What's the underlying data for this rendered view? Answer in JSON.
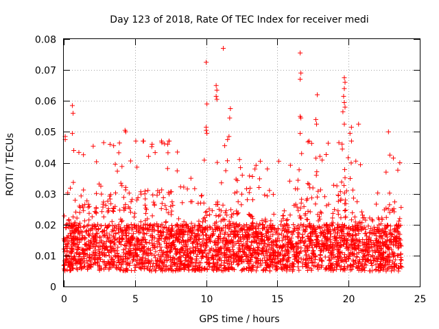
{
  "chart_data": {
    "type": "scatter",
    "title": "Day 123 of 2018, Rate Of TEC Index for receiver medi",
    "xlabel": "GPS time / hours",
    "ylabel": "ROTI / TECUs",
    "xlim": [
      0,
      25
    ],
    "ylim": [
      0,
      0.08
    ],
    "x_ticks": [
      {
        "value": 0,
        "label": "0"
      },
      {
        "value": 5,
        "label": "5"
      },
      {
        "value": 10,
        "label": "10"
      },
      {
        "value": 15,
        "label": "15"
      },
      {
        "value": 20,
        "label": "20"
      },
      {
        "value": 25,
        "label": "25"
      }
    ],
    "y_ticks": [
      {
        "value": 0,
        "label": "0"
      },
      {
        "value": 0.01,
        "label": "0.01"
      },
      {
        "value": 0.02,
        "label": "0.02"
      },
      {
        "value": 0.03,
        "label": "0.03"
      },
      {
        "value": 0.04,
        "label": "0.04"
      },
      {
        "value": 0.05,
        "label": "0.05"
      },
      {
        "value": 0.06,
        "label": "0.06"
      },
      {
        "value": 0.07,
        "label": "0.07"
      },
      {
        "value": 0.08,
        "label": "0.08"
      }
    ],
    "grid": true,
    "marker": "plus",
    "color": "#ff0000",
    "series": [
      {
        "name": "ROTI",
        "x_range": [
          0,
          23.75
        ],
        "bulk_range": [
          0.005,
          0.025
        ],
        "sample_count": 3200,
        "seed": 123,
        "points": [
          {
            "x": 0.6,
            "y": 0.0585
          },
          {
            "x": 0.65,
            "y": 0.056
          },
          {
            "x": 0.6,
            "y": 0.0495
          },
          {
            "x": 0.1,
            "y": 0.0485
          },
          {
            "x": 0.1,
            "y": 0.0475
          },
          {
            "x": 0.7,
            "y": 0.044
          },
          {
            "x": 4.3,
            "y": 0.0505
          },
          {
            "x": 4.35,
            "y": 0.05
          },
          {
            "x": 5.6,
            "y": 0.047
          },
          {
            "x": 6.2,
            "y": 0.046
          },
          {
            "x": 7.3,
            "y": 0.046
          },
          {
            "x": 10.0,
            "y": 0.0725
          },
          {
            "x": 10.05,
            "y": 0.059
          },
          {
            "x": 10.0,
            "y": 0.0515
          },
          {
            "x": 10.0,
            "y": 0.0505
          },
          {
            "x": 10.05,
            "y": 0.0495
          },
          {
            "x": 10.7,
            "y": 0.065
          },
          {
            "x": 10.75,
            "y": 0.0635
          },
          {
            "x": 10.7,
            "y": 0.0615
          },
          {
            "x": 10.75,
            "y": 0.0605
          },
          {
            "x": 11.2,
            "y": 0.077
          },
          {
            "x": 11.7,
            "y": 0.0575
          },
          {
            "x": 11.65,
            "y": 0.0545
          },
          {
            "x": 11.6,
            "y": 0.0485
          },
          {
            "x": 11.5,
            "y": 0.0475
          },
          {
            "x": 11.3,
            "y": 0.0455
          },
          {
            "x": 16.6,
            "y": 0.0755
          },
          {
            "x": 16.65,
            "y": 0.069
          },
          {
            "x": 16.6,
            "y": 0.067
          },
          {
            "x": 16.6,
            "y": 0.055
          },
          {
            "x": 16.65,
            "y": 0.0545
          },
          {
            "x": 16.6,
            "y": 0.0495
          },
          {
            "x": 16.7,
            "y": 0.043
          },
          {
            "x": 17.8,
            "y": 0.062
          },
          {
            "x": 17.7,
            "y": 0.054
          },
          {
            "x": 17.75,
            "y": 0.0525
          },
          {
            "x": 19.7,
            "y": 0.0675
          },
          {
            "x": 19.75,
            "y": 0.066
          },
          {
            "x": 19.7,
            "y": 0.064
          },
          {
            "x": 19.65,
            "y": 0.0615
          },
          {
            "x": 19.7,
            "y": 0.0595
          },
          {
            "x": 19.75,
            "y": 0.058
          },
          {
            "x": 19.6,
            "y": 0.0565
          },
          {
            "x": 19.7,
            "y": 0.0525
          },
          {
            "x": 20.2,
            "y": 0.0515
          },
          {
            "x": 20.7,
            "y": 0.0525
          },
          {
            "x": 20.1,
            "y": 0.0495
          },
          {
            "x": 22.8,
            "y": 0.05
          },
          {
            "x": 22.9,
            "y": 0.0425
          },
          {
            "x": 23.6,
            "y": 0.04
          },
          {
            "x": 2.8,
            "y": 0.0465
          },
          {
            "x": 3.5,
            "y": 0.0455
          },
          {
            "x": 13.8,
            "y": 0.0405
          },
          {
            "x": 15.1,
            "y": 0.0405
          }
        ]
      }
    ]
  }
}
